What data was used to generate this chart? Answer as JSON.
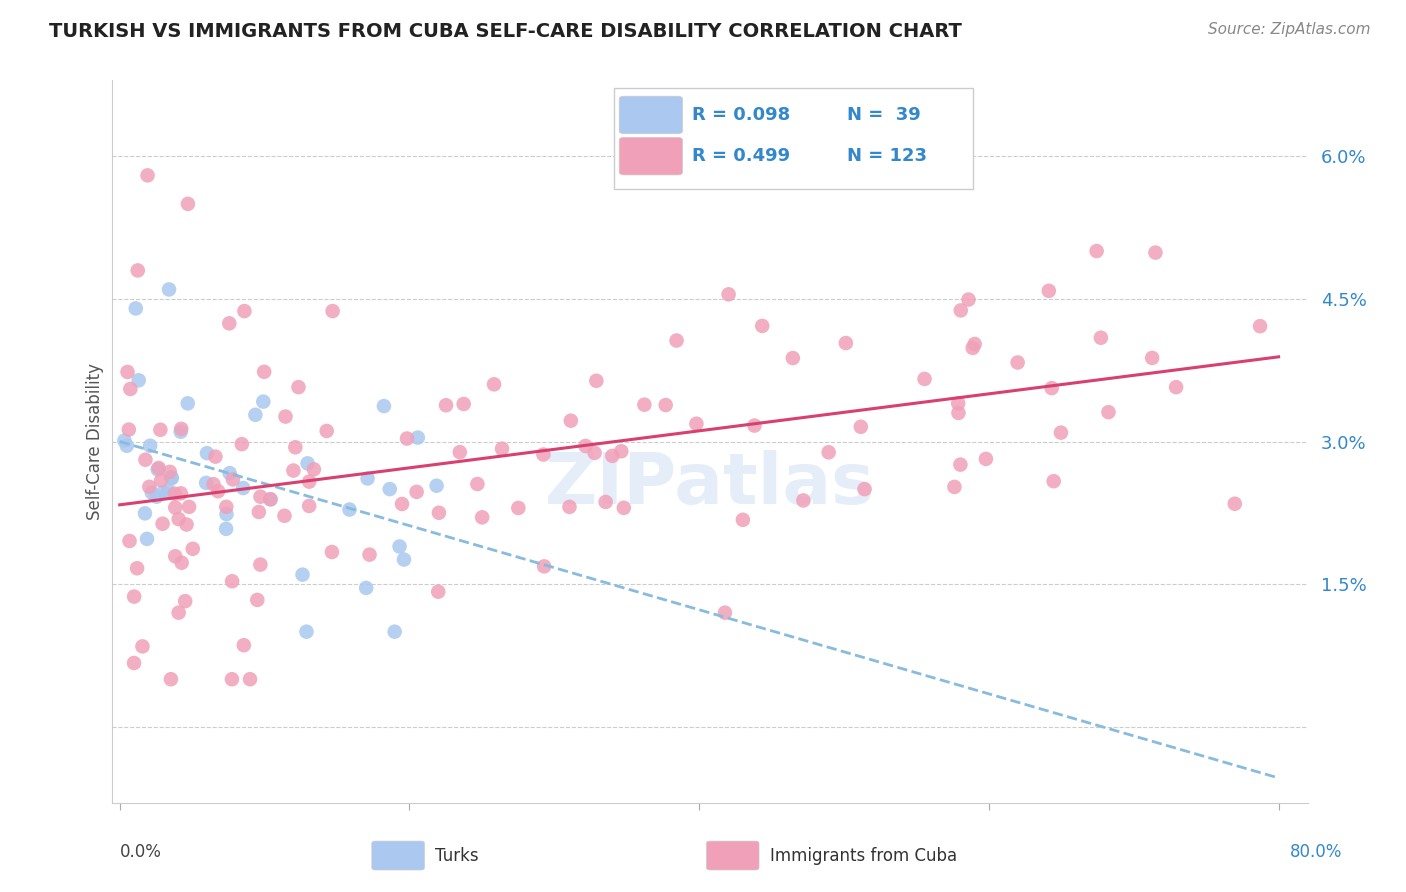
{
  "title": "TURKISH VS IMMIGRANTS FROM CUBA SELF-CARE DISABILITY CORRELATION CHART",
  "source": "Source: ZipAtlas.com",
  "ylabel": "Self-Care Disability",
  "color_turks": "#aac8f0",
  "color_cuba": "#f0a0b8",
  "color_line_turks": "#88bbdd",
  "color_line_cuba": "#d84070",
  "watermark": "ZIPatlas",
  "legend_r1": "R = 0.098",
  "legend_n1": "N =  39",
  "legend_r2": "R = 0.499",
  "legend_n2": "N = 123",
  "ytick_vals": [
    0.0,
    0.015,
    0.03,
    0.045,
    0.06
  ],
  "ytick_labels": [
    "",
    "1.5%",
    "3.0%",
    "4.5%",
    "6.0%"
  ],
  "xlim": [
    -0.005,
    0.82
  ],
  "ylim": [
    -0.008,
    0.068
  ]
}
